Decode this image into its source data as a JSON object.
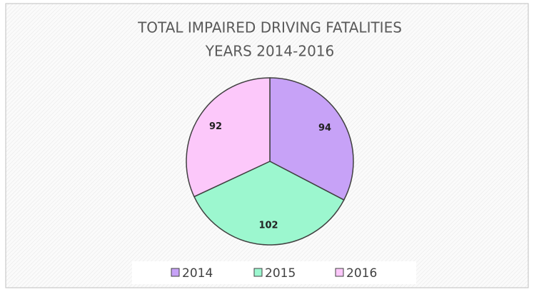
{
  "chart_data": {
    "type": "pie",
    "title": "TOTAL IMPAIRED DRIVING FATALITIES",
    "subtitle": "YEARS 2014-2016",
    "categories": [
      "2014",
      "2015",
      "2016"
    ],
    "values": [
      94,
      102,
      92
    ],
    "colors": [
      "#c7a2f7",
      "#9cf7cf",
      "#fcc8fa"
    ],
    "legend": "bottom"
  }
}
